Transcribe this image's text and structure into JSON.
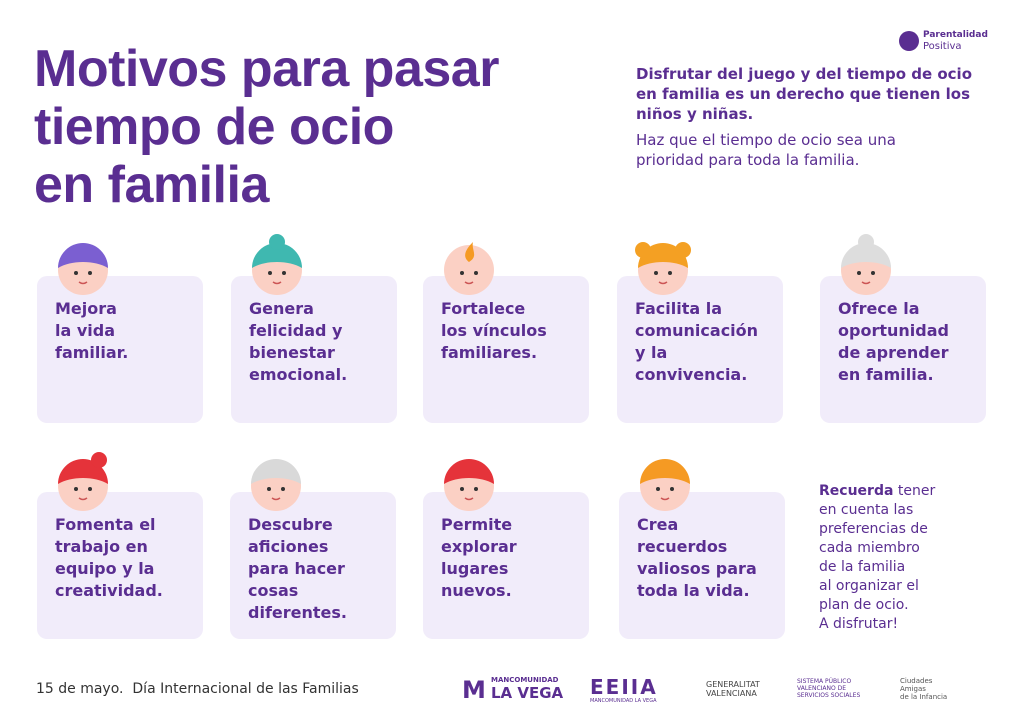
{
  "brand": {
    "line1": "Parentalidad",
    "line2": "Positiva"
  },
  "title": [
    "Motivos para pasar",
    "tiempo de ocio",
    "en familia"
  ],
  "intro": {
    "bold": [
      "Disfrutar del juego y del tiempo de ocio",
      "en familia es un derecho que tienen los",
      "niños y niñas."
    ],
    "normal": [
      "Haz que el tiempo de ocio sea una",
      "prioridad para toda la familia."
    ]
  },
  "cards": [
    [
      "Mejora",
      "la vida",
      "familiar."
    ],
    [
      "Genera",
      "felicidad y",
      "bienestar",
      "emocional."
    ],
    [
      "Fortalece",
      "los vínculos",
      "familiares."
    ],
    [
      "Facilita la",
      "comunicación",
      "y la",
      "convivencia."
    ],
    [
      "Ofrece la",
      "oportunidad",
      "de aprender",
      "en familia."
    ],
    [
      "Fomenta el",
      "trabajo en",
      "equipo y la",
      "creatividad."
    ],
    [
      "Descubre",
      "aficiones",
      "para hacer",
      "cosas",
      "diferentes."
    ],
    [
      "Permite",
      "explorar",
      "lugares",
      "nuevos."
    ],
    [
      "Crea",
      "recuerdos",
      "valiosos para",
      "toda la vida."
    ]
  ],
  "reminder": {
    "bold": "Recuerda",
    "first": " tener",
    "lines": [
      "en cuenta las",
      "preferencias de",
      "cada miembro",
      "de la familia",
      "al organizar el",
      "plan de ocio.",
      "A disfrutar!"
    ]
  },
  "footer": {
    "date": "15 de mayo.",
    "event": "Día Internacional de las Familias"
  },
  "logos": {
    "mancomunidad": {
      "top": "MANCOMUNIDAD",
      "bottom": "LA VEGA"
    },
    "eeiia": {
      "name": "EEIIA",
      "sub": "MANCOMUNIDAD LA VEGA"
    },
    "generalitat": [
      "GENERALITAT",
      "VALENCIANA"
    ],
    "servicios": [
      "SISTEMA PÚBLICO",
      "VALENCIANO DE",
      "SERVICIOS SOCIALES"
    ],
    "ciudades": [
      "Ciudades",
      "Amigas",
      "de la Infancia"
    ]
  }
}
